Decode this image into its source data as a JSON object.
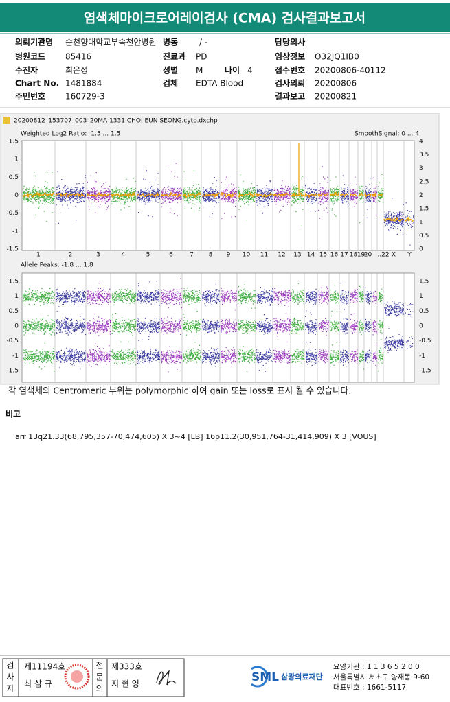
{
  "header": {
    "title": "염색체마이크로어레이검사 (CMA) 검사결과보고서"
  },
  "info": {
    "left": [
      {
        "label": "의뢰기관명",
        "value": "순천향대학교부속천안병원"
      },
      {
        "label": "병원코드",
        "value": "85416"
      },
      {
        "label": "수진자",
        "value": "최은성"
      },
      {
        "label": "Chart No.",
        "value": "1481884"
      },
      {
        "label": "주민번호",
        "value": "160729-3"
      }
    ],
    "middle": [
      {
        "label": "병동",
        "value": "/ -"
      },
      {
        "label": "진료과",
        "value": "PD"
      },
      {
        "label": "성별",
        "value": "M"
      },
      {
        "label": "검체",
        "value": "EDTA Blood"
      }
    ],
    "age": {
      "label": "나이",
      "value": "4"
    },
    "right": [
      {
        "label": "담당의사"
      },
      {
        "label": "임상정보",
        "value": "O32JQ1IB0"
      },
      {
        "label": "접수번호",
        "value": "20200806-40112"
      },
      {
        "label": "검사의뢰",
        "value": "20200806"
      },
      {
        "label": "결과보고",
        "value": "20200821"
      }
    ]
  },
  "plot": {
    "file": "20200812_153707_003_20MA 1331 CHOI EUN SEONG.cyto.dxchp",
    "top": {
      "label": "Weighted Log2 Ratio: -1.5 ... 1.5",
      "right_label": "SmoothSignal: 0 ... 4",
      "left_ticks": [
        "1.5",
        "1",
        "0.5",
        "0",
        "-0.5",
        "-1",
        "-1.5"
      ],
      "right_ticks": [
        "4",
        "3.5",
        "3",
        "2.5",
        "2",
        "1.5",
        "1",
        "0.5",
        "0"
      ]
    },
    "chromosomes": [
      "1",
      "2",
      "3",
      "4",
      "5",
      "6",
      "7",
      "8",
      "9",
      "10",
      "11",
      "12",
      "13",
      "14",
      "15",
      "16",
      "17",
      "18",
      "19",
      "20",
      "..22",
      "X",
      "Y"
    ],
    "bottom": {
      "label": "Allele Peaks: -1.8 ... 1.8",
      "left_ticks": [
        "1.5",
        "1",
        "0.5",
        "0",
        "-0.5",
        "-1",
        "-1.5"
      ],
      "right_ticks": [
        "1.5",
        "1",
        "0.5",
        "0",
        "-0.5",
        "-1",
        "-1.5"
      ]
    }
  },
  "note": "각 염색체의 Centromeric 부위는 polymorphic 하여 gain 또는 loss로 표시 될 수 있습니다.",
  "remarks": {
    "title": "비고",
    "text": "arr 13q21.33(68,795,357-70,474,605) X 3~4 [LB] 16p11.2(30,951,764-31,414,909) X 3 [VOUS]"
  },
  "footer": {
    "examiner": [
      "검",
      "사",
      "자"
    ],
    "examiner_no": "제11194호",
    "examiner_name": "최 삼 규",
    "specialist": [
      "전",
      "문",
      "의"
    ],
    "specialist_no": "제333호",
    "specialist_name": "지 현 영",
    "logo": "SML",
    "org": "삼광의료재단",
    "lines": [
      "요양기관 : 1 1 3 6 5 2 0 0",
      "서울특별시 서초구 양재동 9-60",
      "대표번호 : 1661-5117"
    ]
  }
}
